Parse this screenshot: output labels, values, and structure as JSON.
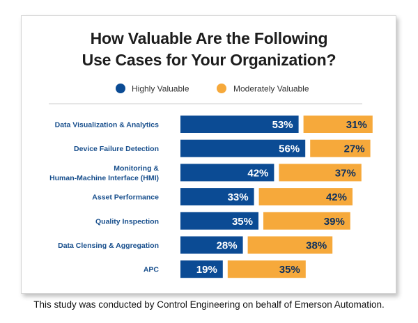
{
  "chart_data": {
    "type": "bar",
    "stacked": true,
    "orientation": "horizontal",
    "title_lines": [
      "How Valuable Are the Following",
      "Use Cases for Your Organization?"
    ],
    "categories": [
      [
        "Data Visualization & Analytics"
      ],
      [
        "Device Failure Detection"
      ],
      [
        "Monitoring &",
        "Human-Machine Interface (HMI)"
      ],
      [
        "Asset Performance"
      ],
      [
        "Quality Inspection"
      ],
      [
        "Data Clensing & Aggregation"
      ],
      [
        "APC"
      ]
    ],
    "series": [
      {
        "name": "Highly Valuable",
        "color": "#0b4b94",
        "values": [
          53,
          56,
          42,
          33,
          35,
          28,
          19
        ]
      },
      {
        "name": "Moderately Valuable",
        "color": "#f6a93b",
        "values": [
          31,
          27,
          37,
          42,
          39,
          38,
          35
        ]
      }
    ],
    "value_suffix": "%",
    "legend_position": "top",
    "label_color": "#174e8c"
  },
  "caption": "This study was conducted by Control Engineering on behalf of Emerson Automation."
}
